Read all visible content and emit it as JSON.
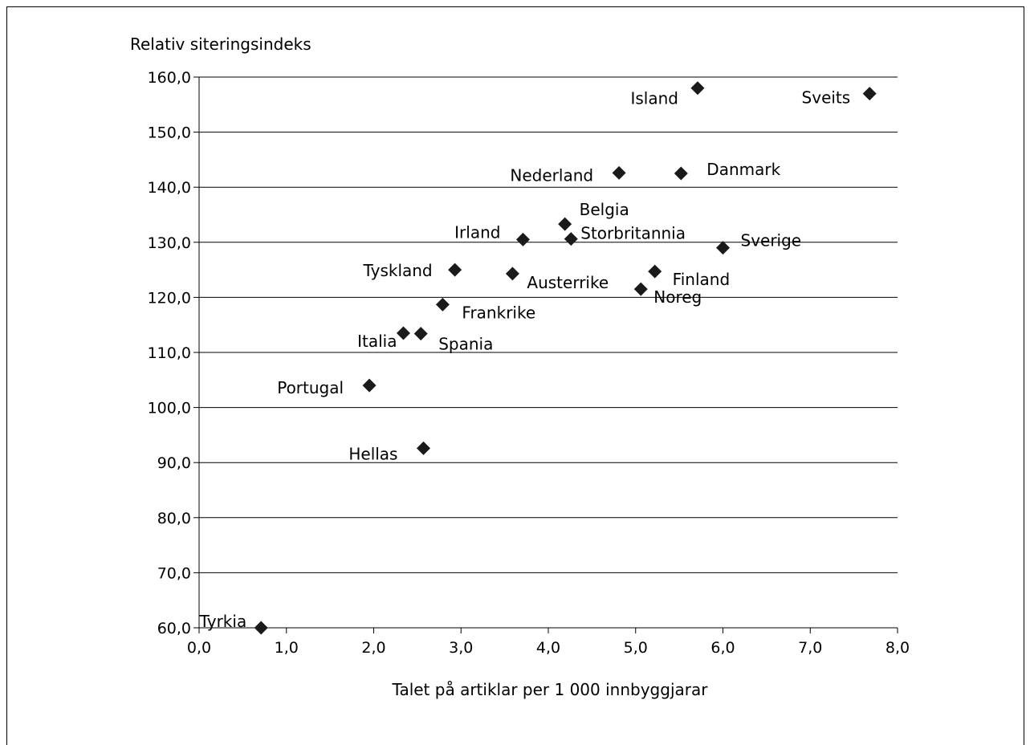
{
  "chart_data": {
    "type": "scatter",
    "ylabel": "Relativ siteringsindeks",
    "xlabel": "Talet på artiklar per 1 000 innbyggjarar",
    "xlim": [
      0,
      8
    ],
    "ylim": [
      60,
      160
    ],
    "x_ticks": [
      "0,0",
      "1,0",
      "2,0",
      "3,0",
      "4,0",
      "5,0",
      "6,0",
      "7,0",
      "8,0"
    ],
    "y_ticks": [
      "60,0",
      "70,0",
      "80,0",
      "90,0",
      "100,0",
      "110,0",
      "120,0",
      "130,0",
      "140,0",
      "150,0",
      "160,0"
    ],
    "grid": "horizontal",
    "marker": "diamond",
    "points": [
      {
        "label": "Island",
        "x": 5.71,
        "y": 158.0
      },
      {
        "label": "Sveits",
        "x": 7.68,
        "y": 157.0
      },
      {
        "label": "Nederland",
        "x": 4.81,
        "y": 142.6
      },
      {
        "label": "Danmark",
        "x": 5.52,
        "y": 142.5
      },
      {
        "label": "Belgia",
        "x": 4.19,
        "y": 133.3
      },
      {
        "label": "Irland",
        "x": 3.71,
        "y": 130.5
      },
      {
        "label": "Storbritannia",
        "x": 4.26,
        "y": 130.6
      },
      {
        "label": "Sverige",
        "x": 6.0,
        "y": 129.0
      },
      {
        "label": "Tyskland",
        "x": 2.93,
        "y": 125.0
      },
      {
        "label": "Austerrike",
        "x": 3.59,
        "y": 124.3
      },
      {
        "label": "Finland",
        "x": 5.22,
        "y": 124.7
      },
      {
        "label": "Noreg",
        "x": 5.06,
        "y": 121.5
      },
      {
        "label": "Frankrike",
        "x": 2.79,
        "y": 118.7
      },
      {
        "label": "Italia",
        "x": 2.34,
        "y": 113.5
      },
      {
        "label": "Spania",
        "x": 2.54,
        "y": 113.4
      },
      {
        "label": "Portugal",
        "x": 1.95,
        "y": 104.0
      },
      {
        "label": "Hellas",
        "x": 2.57,
        "y": 92.6
      },
      {
        "label": "Tyrkia",
        "x": 0.71,
        "y": 60.0
      }
    ]
  }
}
